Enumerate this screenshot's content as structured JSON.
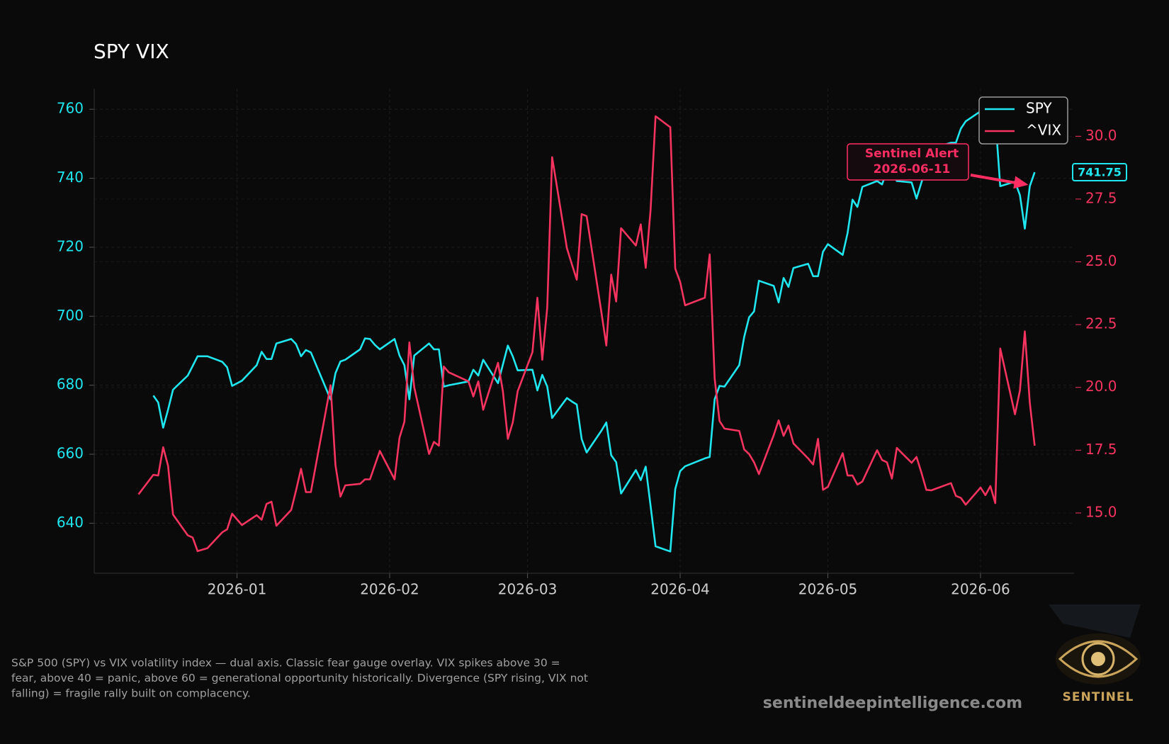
{
  "chart_data": {
    "type": "line",
    "title": "SPY VIX",
    "x": [
      "2025-12-12",
      "2025-12-15",
      "2025-12-16",
      "2025-12-17",
      "2025-12-18",
      "2025-12-19",
      "2025-12-22",
      "2025-12-23",
      "2025-12-24",
      "2025-12-26",
      "2025-12-29",
      "2025-12-30",
      "2025-12-31",
      "2026-01-02",
      "2026-01-05",
      "2026-01-06",
      "2026-01-07",
      "2026-01-08",
      "2026-01-09",
      "2026-01-12",
      "2026-01-13",
      "2026-01-14",
      "2026-01-15",
      "2026-01-16",
      "2026-01-20",
      "2026-01-21",
      "2026-01-22",
      "2026-01-23",
      "2026-01-26",
      "2026-01-27",
      "2026-01-28",
      "2026-01-29",
      "2026-01-30",
      "2026-02-02",
      "2026-02-03",
      "2026-02-04",
      "2026-02-05",
      "2026-02-06",
      "2026-02-09",
      "2026-02-10",
      "2026-02-11",
      "2026-02-12",
      "2026-02-13",
      "2026-02-17",
      "2026-02-18",
      "2026-02-19",
      "2026-02-20",
      "2026-02-23",
      "2026-02-24",
      "2026-02-25",
      "2026-02-26",
      "2026-02-27",
      "2026-03-02",
      "2026-03-03",
      "2026-03-04",
      "2026-03-05",
      "2026-03-06",
      "2026-03-09",
      "2026-03-10",
      "2026-03-11",
      "2026-03-12",
      "2026-03-13",
      "2026-03-16",
      "2026-03-17",
      "2026-03-18",
      "2026-03-19",
      "2026-03-20",
      "2026-03-23",
      "2026-03-24",
      "2026-03-25",
      "2026-03-26",
      "2026-03-27",
      "2026-03-30",
      "2026-03-31",
      "2026-04-01",
      "2026-04-02",
      "2026-04-06",
      "2026-04-07",
      "2026-04-08",
      "2026-04-09",
      "2026-04-10",
      "2026-04-13",
      "2026-04-14",
      "2026-04-15",
      "2026-04-16",
      "2026-04-17",
      "2026-04-20",
      "2026-04-21",
      "2026-04-22",
      "2026-04-23",
      "2026-04-24",
      "2026-04-27",
      "2026-04-28",
      "2026-04-29",
      "2026-04-30",
      "2026-05-01",
      "2026-05-04",
      "2026-05-05",
      "2026-05-06",
      "2026-05-07",
      "2026-05-08",
      "2026-05-11",
      "2026-05-12",
      "2026-05-13",
      "2026-05-14",
      "2026-05-15",
      "2026-05-18",
      "2026-05-19",
      "2026-05-20",
      "2026-05-21",
      "2026-05-22",
      "2026-05-26",
      "2026-05-27",
      "2026-05-28",
      "2026-05-29",
      "2026-06-01",
      "2026-06-02",
      "2026-06-03",
      "2026-06-04",
      "2026-06-05",
      "2026-06-08",
      "2026-06-09",
      "2026-06-10",
      "2026-06-11",
      "2026-06-12"
    ],
    "series": [
      {
        "name": "SPY",
        "color": "#1fe6ef",
        "values": [
          null,
          677,
          675,
          667.7,
          672.9,
          678.7,
          682.8,
          685.6,
          688.4,
          688.4,
          686.8,
          685.2,
          679.8,
          681.3,
          685.8,
          689.7,
          687.6,
          687.6,
          692.1,
          693.4,
          691.9,
          688.4,
          690.2,
          689.5,
          675.9,
          683.5,
          686.9,
          687.4,
          690.4,
          693.6,
          693.4,
          691.7,
          690.4,
          693.4,
          688.6,
          685.8,
          675.9,
          688.6,
          692.1,
          690.4,
          690.4,
          679.6,
          680,
          681.1,
          684.5,
          682.8,
          687.4,
          680.6,
          686,
          691.5,
          688.4,
          684.3,
          684.5,
          678.5,
          683,
          679.6,
          670.5,
          676.3,
          675.3,
          674.4,
          664.4,
          660.5,
          666.8,
          669.2,
          659.7,
          657.7,
          648.6,
          655.4,
          652.5,
          656.4,
          645,
          633.3,
          631.8,
          649.9,
          655.1,
          656.5,
          658.8,
          659.2,
          675.9,
          679.8,
          679.6,
          685.8,
          694,
          699.7,
          701.4,
          710.3,
          708.8,
          704,
          711.1,
          708.5,
          714,
          715.2,
          711.6,
          711.6,
          718.7,
          720.9,
          717.8,
          724.1,
          733.8,
          731.7,
          737.5,
          739.2,
          738.2,
          742.3,
          741.8,
          739.2,
          738.8,
          734.1,
          738.8,
          743.1,
          748.5,
          750.3,
          750.3,
          754.4,
          756.5,
          759.4,
          759.8,
          755,
          757.8,
          737.7,
          739,
          735.1,
          725.4,
          737.7,
          741.75
        ]
      },
      {
        "name": "^VIX",
        "color": "#f7335f",
        "axis": "y2",
        "values": [
          15.74,
          16.52,
          16.49,
          17.62,
          16.88,
          14.94,
          14.11,
          14.02,
          13.48,
          13.6,
          14.23,
          14.35,
          14.97,
          14.52,
          14.91,
          14.73,
          15.36,
          15.45,
          14.49,
          15.12,
          15.9,
          16.76,
          15.83,
          15.83,
          20.09,
          16.9,
          15.65,
          16.1,
          16.16,
          16.34,
          16.34,
          16.9,
          17.47,
          16.34,
          18,
          18.63,
          21.79,
          20,
          17.35,
          17.83,
          17.68,
          20.83,
          20.6,
          20.24,
          19.64,
          20.24,
          19.11,
          20.98,
          19.85,
          17.95,
          18.6,
          19.85,
          21.4,
          23.57,
          21.1,
          23.18,
          29.17,
          25.54,
          24.91,
          24.29,
          26.9,
          26.82,
          23,
          21.67,
          24.49,
          23.42,
          26.34,
          25.65,
          26.49,
          24.76,
          27.08,
          30.8,
          30.36,
          24.73,
          24.2,
          23.27,
          23.57,
          25.3,
          20.36,
          18.66,
          18.36,
          18.27,
          17.53,
          17.35,
          17.02,
          16.55,
          18.1,
          18.69,
          18.07,
          18.48,
          17.77,
          17.17,
          16.93,
          17.95,
          15.92,
          16.04,
          17.38,
          16.49,
          16.49,
          16.13,
          16.25,
          17.5,
          17.11,
          17.02,
          16.37,
          17.59,
          17,
          17.23,
          16.6,
          15.92,
          15.9,
          16.19,
          15.68,
          15.6,
          15.33,
          16.01,
          15.71,
          16.07,
          15.39,
          21.55,
          18.93,
          19.88,
          22.23,
          19.4,
          17.68
        ]
      }
    ],
    "xlim": [
      "2025-12-03",
      "2026-06-20"
    ],
    "xticks": [
      {
        "value": "2026-01-01",
        "label": "2026-01"
      },
      {
        "value": "2026-02-01",
        "label": "2026-02"
      },
      {
        "value": "2026-03-01",
        "label": "2026-03"
      },
      {
        "value": "2026-04-01",
        "label": "2026-04"
      },
      {
        "value": "2026-05-01",
        "label": "2026-05"
      },
      {
        "value": "2026-06-01",
        "label": "2026-06"
      }
    ],
    "ylim": [
      625.5,
      766
    ],
    "yticks": [
      640,
      660,
      680,
      700,
      720,
      740,
      760
    ],
    "y2lim": [
      12.6,
      31.9
    ],
    "y2ticks": [
      {
        "value": 15,
        "label": "15.0"
      },
      {
        "value": 17.5,
        "label": "17.5"
      },
      {
        "value": 20,
        "label": "20.0"
      },
      {
        "value": 22.5,
        "label": "22.5"
      },
      {
        "value": 25,
        "label": "25.0"
      },
      {
        "value": 27.5,
        "label": "27.5"
      },
      {
        "value": 30,
        "label": "30.0"
      }
    ],
    "grid": true,
    "legend": "upper right",
    "annotation": {
      "lines": [
        "Sentinel Alert",
        "2026-06-11"
      ],
      "x": "2026-06-11",
      "color": "#ff2d62"
    },
    "end_label": "741.75"
  },
  "footer": {
    "caption": [
      "S&P 500 (SPY) vs VIX volatility index — dual axis. Classic fear gauge overlay. VIX spikes above 30 =",
      "fear, above 40 = panic, above 60 = generational opportunity historically. Divergence (SPY rising, VIX not",
      "falling) = fragile rally built on complacency."
    ],
    "website": "sentineldeepintelligence.com",
    "logo": "SENTINEL"
  }
}
